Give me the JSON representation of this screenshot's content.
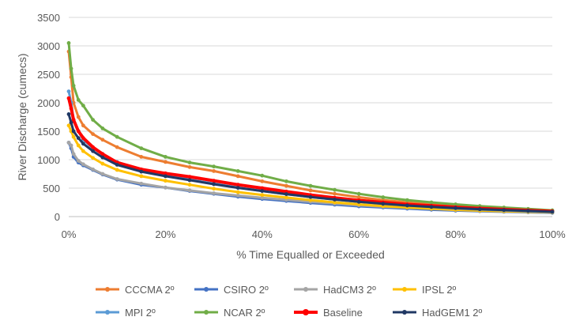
{
  "chart_data": {
    "type": "line",
    "title": "",
    "xlabel": "% Time Equalled or Exceeded",
    "ylabel": "River Discharge (cumecs)",
    "xlim": [
      0,
      100
    ],
    "ylim": [
      0,
      3500
    ],
    "x_ticks": [
      0,
      20,
      40,
      60,
      80,
      100
    ],
    "x_tick_labels": [
      "0%",
      "20%",
      "40%",
      "60%",
      "80%",
      "100%"
    ],
    "y_ticks": [
      0,
      500,
      1000,
      1500,
      2000,
      2500,
      3000,
      3500
    ],
    "y_tick_labels": [
      "0",
      "500",
      "1000",
      "1500",
      "2000",
      "2500",
      "3000",
      "3500"
    ],
    "grid": true,
    "legend_position": "bottom",
    "x": [
      0,
      0.5,
      1,
      2,
      3,
      5,
      7,
      10,
      15,
      20,
      25,
      30,
      35,
      40,
      45,
      50,
      55,
      60,
      65,
      70,
      75,
      80,
      85,
      90,
      95,
      100
    ],
    "series": [
      {
        "name": "CCCMA 2º",
        "color": "#ED7D31",
        "values": [
          2900,
          2450,
          2000,
          1750,
          1600,
          1450,
          1350,
          1220,
          1050,
          960,
          870,
          800,
          710,
          620,
          540,
          460,
          400,
          340,
          290,
          250,
          215,
          185,
          160,
          140,
          120,
          100
        ]
      },
      {
        "name": "CSIRO 2º",
        "color": "#4472C4",
        "values": [
          1300,
          1200,
          1050,
          950,
          900,
          820,
          740,
          650,
          560,
          510,
          450,
          400,
          350,
          310,
          275,
          240,
          210,
          180,
          160,
          140,
          120,
          105,
          95,
          85,
          75,
          65
        ]
      },
      {
        "name": "HadCM3 2º",
        "color": "#A5A5A5",
        "values": [
          1300,
          1250,
          1100,
          980,
          920,
          830,
          750,
          660,
          580,
          510,
          460,
          410,
          370,
          330,
          295,
          260,
          230,
          200,
          175,
          155,
          135,
          115,
          100,
          90,
          80,
          70
        ]
      },
      {
        "name": "IPSL 2º",
        "color": "#FFC000",
        "values": [
          1600,
          1500,
          1400,
          1250,
          1150,
          1030,
          930,
          820,
          710,
          630,
          560,
          490,
          430,
          380,
          335,
          290,
          250,
          215,
          185,
          160,
          140,
          120,
          105,
          95,
          85,
          75
        ]
      },
      {
        "name": "MPI  2º",
        "color": "#5B9BD5",
        "values": [
          2200,
          2000,
          1700,
          1500,
          1350,
          1200,
          1100,
          960,
          820,
          730,
          650,
          580,
          510,
          450,
          395,
          345,
          300,
          260,
          225,
          195,
          170,
          145,
          125,
          110,
          95,
          80
        ]
      },
      {
        "name": "NCAR 2º",
        "color": "#70AD47",
        "values": [
          3050,
          2600,
          2300,
          2050,
          1950,
          1700,
          1550,
          1400,
          1200,
          1050,
          950,
          880,
          800,
          720,
          620,
          540,
          470,
          400,
          340,
          290,
          250,
          215,
          185,
          160,
          135,
          110
        ]
      },
      {
        "name": "Baseline",
        "color": "#FF0000",
        "values": [
          2080,
          1900,
          1700,
          1500,
          1380,
          1220,
          1100,
          950,
          830,
          760,
          700,
          630,
          560,
          500,
          440,
          380,
          330,
          285,
          250,
          215,
          190,
          165,
          145,
          125,
          110,
          95
        ]
      },
      {
        "name": "HadGEM1 2º",
        "color": "#203864",
        "values": [
          1800,
          1650,
          1500,
          1380,
          1280,
          1150,
          1040,
          910,
          790,
          710,
          640,
          570,
          505,
          450,
          395,
          345,
          300,
          260,
          225,
          195,
          170,
          150,
          130,
          115,
          100,
          85
        ]
      }
    ]
  }
}
